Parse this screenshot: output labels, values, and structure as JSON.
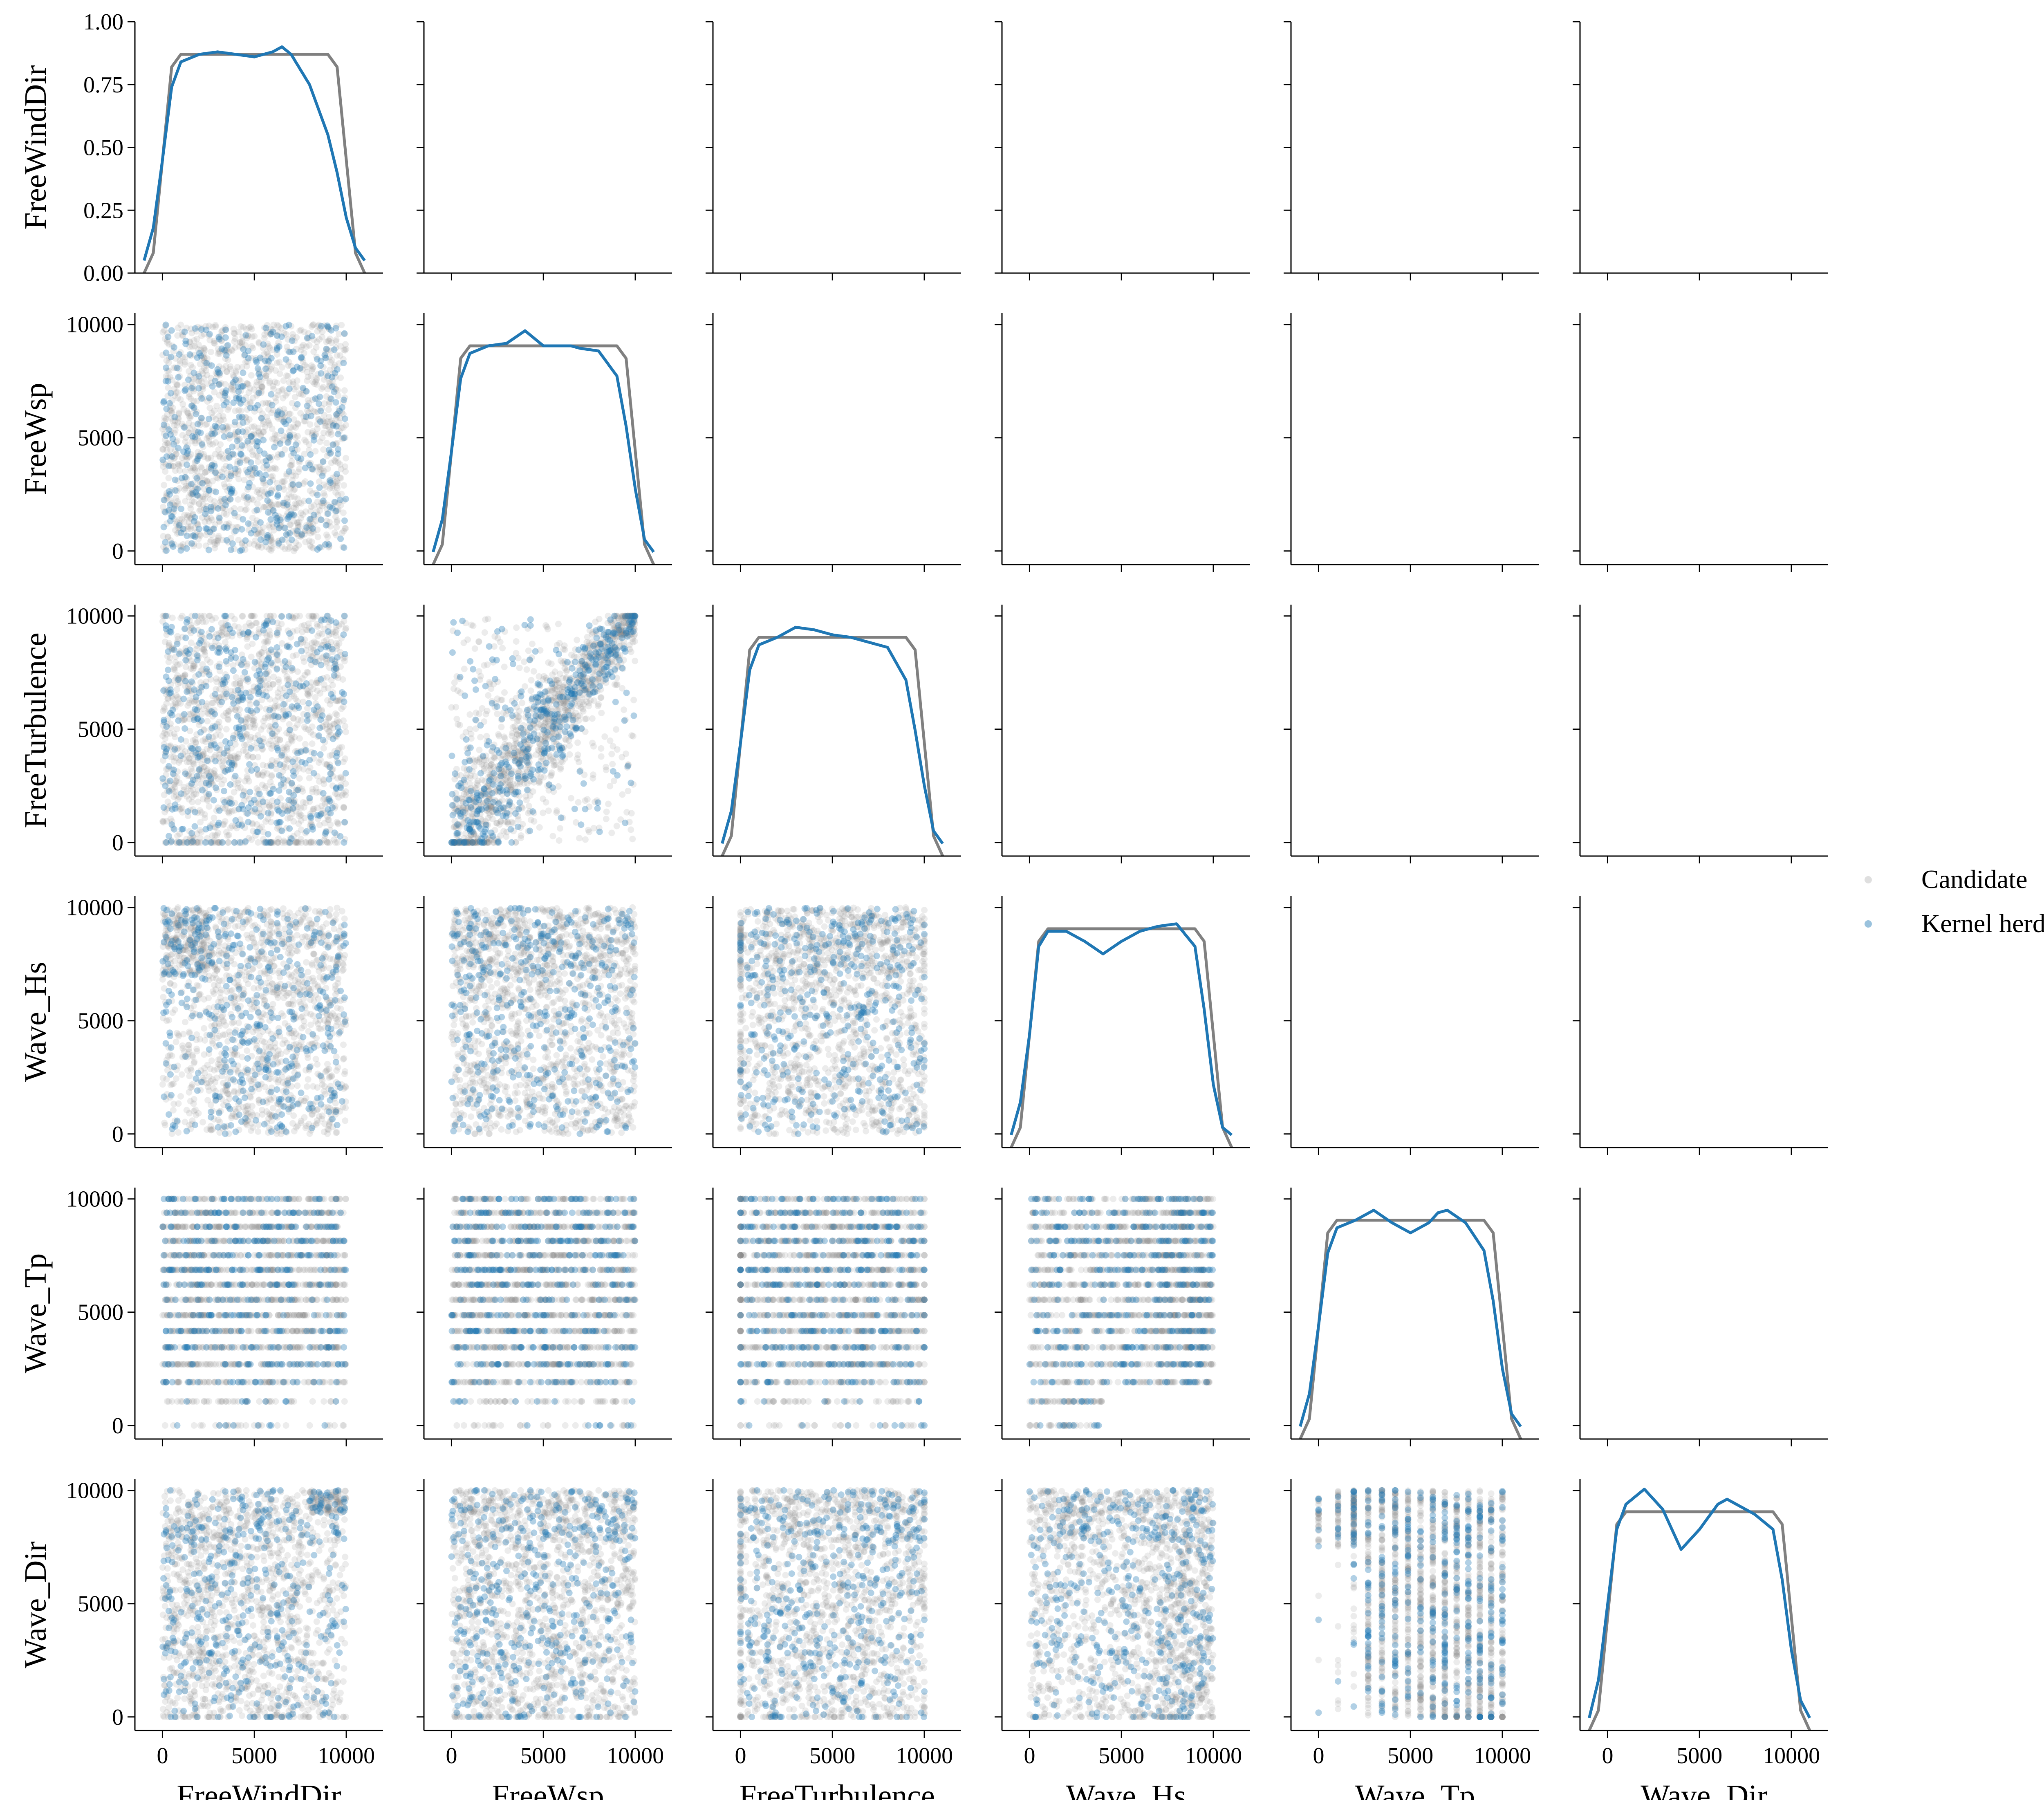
{
  "chart_data": {
    "type": "scatter",
    "kind": "pairplot",
    "variables": [
      "FreeWindDir",
      "FreeWsp",
      "FreeTurbulence",
      "Wave_Hs",
      "Wave_Tp",
      "Wave_Dir"
    ],
    "diagonal": "kde",
    "lower_triangle": "scatter",
    "upper_triangle": "empty axes",
    "value_range": [
      0,
      10000
    ],
    "axis_ticks": [
      0,
      5000,
      10000
    ],
    "axis_tick_labels": [
      "0",
      "5000",
      "10000"
    ],
    "diag_y_ticks": [
      "0.00",
      "0.25",
      "0.50",
      "0.75",
      "1.00"
    ],
    "legend": {
      "placement": "right",
      "entries": [
        {
          "name": "Candidate",
          "color": "#808080"
        },
        {
          "name": "Kernel herding",
          "color": "#1f77b4"
        }
      ]
    },
    "grid": false,
    "series": [
      {
        "name": "Candidate",
        "color": "#808080",
        "kde_density": {
          "x": [
            -1000,
            -500,
            0,
            500,
            1000,
            2000,
            3000,
            5000,
            7000,
            8000,
            9000,
            9500,
            10000,
            10500,
            11000
          ],
          "FreeWindDir": [
            0.0,
            0.08,
            0.45,
            0.82,
            0.87,
            0.87,
            0.87,
            0.87,
            0.87,
            0.87,
            0.87,
            0.82,
            0.45,
            0.08,
            0.0
          ],
          "FreeWsp": [
            0.0,
            0.08,
            0.45,
            0.82,
            0.87,
            0.87,
            0.87,
            0.87,
            0.87,
            0.87,
            0.87,
            0.82,
            0.45,
            0.08,
            0.0
          ],
          "FreeTurbulence": [
            0.0,
            0.08,
            0.45,
            0.82,
            0.87,
            0.87,
            0.87,
            0.87,
            0.87,
            0.87,
            0.87,
            0.82,
            0.45,
            0.08,
            0.0
          ],
          "Wave_Hs": [
            0.0,
            0.08,
            0.45,
            0.82,
            0.87,
            0.87,
            0.87,
            0.87,
            0.87,
            0.87,
            0.87,
            0.82,
            0.45,
            0.08,
            0.0
          ],
          "Wave_Tp": [
            0.0,
            0.08,
            0.45,
            0.82,
            0.87,
            0.87,
            0.87,
            0.87,
            0.87,
            0.87,
            0.87,
            0.82,
            0.45,
            0.08,
            0.0
          ],
          "Wave_Dir": [
            0.0,
            0.08,
            0.45,
            0.82,
            0.87,
            0.87,
            0.87,
            0.87,
            0.87,
            0.87,
            0.87,
            0.82,
            0.45,
            0.08,
            0.0
          ]
        }
      },
      {
        "name": "Kernel herding",
        "color": "#1f77b4",
        "kde_density": {
          "x": [
            -1000,
            -500,
            0,
            500,
            1000,
            2000,
            3000,
            4000,
            5000,
            6000,
            6500,
            7000,
            8000,
            9000,
            9500,
            10000,
            10500,
            11000
          ],
          "FreeWindDir": [
            0.05,
            0.18,
            0.45,
            0.74,
            0.84,
            0.87,
            0.88,
            0.87,
            0.86,
            0.88,
            0.9,
            0.87,
            0.75,
            0.55,
            0.4,
            0.22,
            0.1,
            0.05
          ],
          "FreeWsp": [
            0.05,
            0.18,
            0.45,
            0.74,
            0.84,
            0.87,
            0.88,
            0.93,
            0.87,
            0.87,
            0.87,
            0.86,
            0.85,
            0.75,
            0.55,
            0.3,
            0.1,
            0.05
          ],
          "FreeTurbulence": [
            0.05,
            0.18,
            0.45,
            0.74,
            0.84,
            0.87,
            0.91,
            0.9,
            0.88,
            0.87,
            0.86,
            0.85,
            0.83,
            0.7,
            0.5,
            0.28,
            0.1,
            0.05
          ],
          "Wave_Hs": [
            0.05,
            0.18,
            0.45,
            0.8,
            0.86,
            0.86,
            0.82,
            0.77,
            0.82,
            0.86,
            0.87,
            0.88,
            0.89,
            0.8,
            0.55,
            0.25,
            0.08,
            0.05
          ],
          "Wave_Tp": [
            0.05,
            0.18,
            0.45,
            0.74,
            0.84,
            0.87,
            0.91,
            0.86,
            0.82,
            0.86,
            0.9,
            0.91,
            0.86,
            0.75,
            0.55,
            0.28,
            0.1,
            0.05
          ],
          "Wave_Dir": [
            0.05,
            0.2,
            0.5,
            0.8,
            0.9,
            0.96,
            0.88,
            0.72,
            0.8,
            0.9,
            0.92,
            0.9,
            0.86,
            0.8,
            0.6,
            0.32,
            0.12,
            0.05
          ]
        }
      }
    ]
  }
}
